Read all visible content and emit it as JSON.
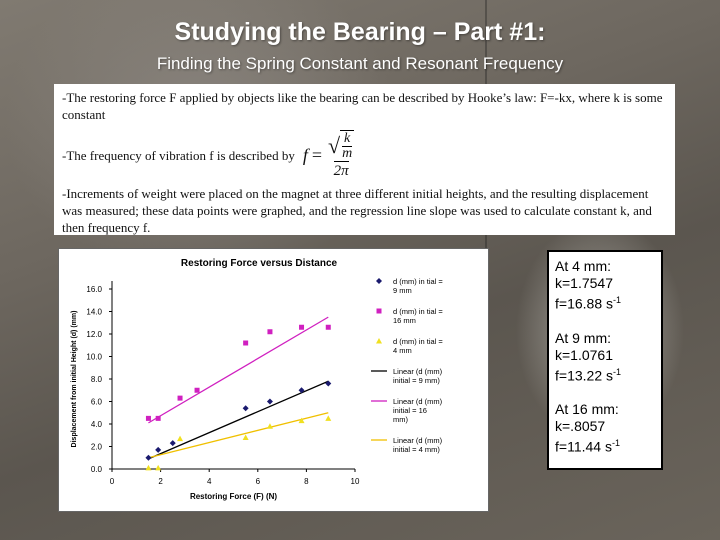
{
  "slide": {
    "title": "Studying the Bearing – Part #1:",
    "subtitle": "Finding the Spring Constant and Resonant Frequency"
  },
  "text": {
    "para1": "-The restoring force F applied by objects like the bearing can be described by Hooke’s law: F=-kx, where k is some constant",
    "para2": "-The frequency of vibration f is described by",
    "para3": "-Increments of weight were placed on the magnet at three different initial heights, and the resulting displacement was measured; these data points were graphed, and the regression line slope was used to calculate constant k, and then frequency f.",
    "formula": {
      "f": "f",
      "eq": "=",
      "k": "k",
      "m": "m",
      "two_pi": "2π"
    }
  },
  "results": [
    {
      "heading": "At 4 mm:",
      "k": "k=1.7547",
      "f": "f=16.88 s",
      "exp": "-1"
    },
    {
      "heading": "At 9 mm:",
      "k": "k=1.0761",
      "f": "f=13.22 s",
      "exp": "-1"
    },
    {
      "heading": "At 16 mm:",
      "k": "k=.8057",
      "f": "f=11.44 s",
      "exp": "-1"
    }
  ],
  "chart_data": {
    "type": "scatter",
    "title": "Restoring Force versus Distance",
    "xlabel": "Restoring Force (F) (N)",
    "ylabel": "Displacement from initial Height (d) (mm)",
    "xlim": [
      0,
      10
    ],
    "ylim": [
      0,
      16
    ],
    "xticks": [
      "0",
      "2",
      "4",
      "6",
      "8",
      "10"
    ],
    "yticks": [
      "0.0",
      "2.0",
      "4.0",
      "6.0",
      "8.0",
      "10.0",
      "12.0",
      "14.0",
      "16.0"
    ],
    "series": [
      {
        "name": "d (mm) initial = 9 mm",
        "marker": "diamond",
        "color": "#1a1a6e",
        "x": [
          1.5,
          1.9,
          2.5,
          5.5,
          6.5,
          7.8,
          8.9
        ],
        "y": [
          1.0,
          1.7,
          2.3,
          5.4,
          6.0,
          7.0,
          7.6
        ]
      },
      {
        "name": "d (mm) initial = 16 mm",
        "marker": "square",
        "color": "#d020c0",
        "x": [
          1.5,
          1.9,
          2.8,
          3.5,
          5.5,
          6.5,
          7.8,
          8.9
        ],
        "y": [
          4.5,
          4.5,
          6.3,
          7.0,
          11.2,
          12.2,
          12.6,
          12.6
        ]
      },
      {
        "name": "d (mm) initial = 4 mm",
        "marker": "triangle",
        "color": "#f0e020",
        "x": [
          1.5,
          1.9,
          2.8,
          5.5,
          6.5,
          7.8,
          8.9
        ],
        "y": [
          0.1,
          0.1,
          2.7,
          2.8,
          3.8,
          4.3,
          4.5
        ]
      },
      {
        "name": "Linear (d (mm) initial = 9 mm)",
        "line": true,
        "color": "#000000",
        "x": [
          1.5,
          8.9
        ],
        "y": [
          0.9,
          7.8
        ]
      },
      {
        "name": "Linear (d (mm) initial = 16 mm)",
        "line": true,
        "color": "#d020c0",
        "x": [
          1.5,
          8.9
        ],
        "y": [
          4.1,
          13.5
        ]
      },
      {
        "name": "Linear (d (mm) initial = 4 mm)",
        "line": true,
        "color": "#f0c000",
        "x": [
          1.5,
          8.9
        ],
        "y": [
          1.0,
          5.0
        ]
      }
    ],
    "legend_labels": [
      [
        "d (mm) in tial =",
        "9 mm"
      ],
      [
        "d (mm) in tial =",
        "16 mm"
      ],
      [
        "d (mm) in tial =",
        "4 mm"
      ],
      [
        "Linear (d (mm)",
        "initial = 9 mm)"
      ],
      [
        "Linear (d (mm)",
        "initial = 16",
        "mm)"
      ],
      [
        "Linear (d (mm)",
        "initial = 4 mm)"
      ]
    ],
    "legend_position": "right",
    "grid": false
  }
}
